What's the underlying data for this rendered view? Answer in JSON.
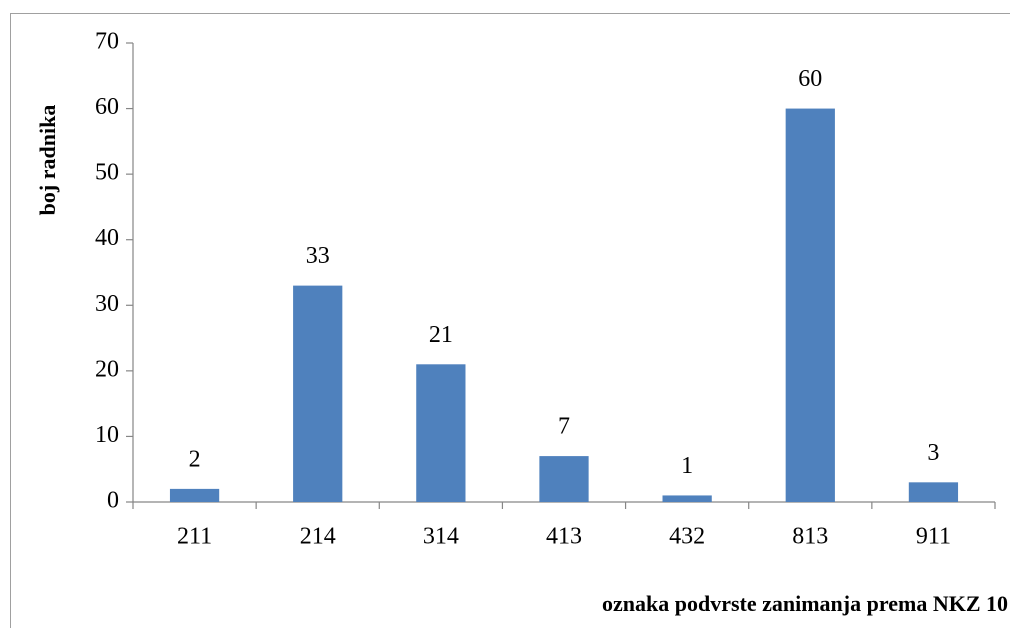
{
  "chart_data": {
    "type": "bar",
    "x_label": "oznaka podvrste zanimanja prema NKZ 10",
    "y_label": "boj radnika",
    "categories": [
      "211",
      "214",
      "314",
      "413",
      "432",
      "813",
      "911"
    ],
    "values": [
      2,
      33,
      21,
      7,
      1,
      60,
      3
    ],
    "color": "#4f81bd",
    "ylim": [
      0,
      70
    ],
    "yticks": [
      0,
      10,
      20,
      30,
      40,
      50,
      60,
      70
    ],
    "grid": false,
    "data_labels": true
  }
}
